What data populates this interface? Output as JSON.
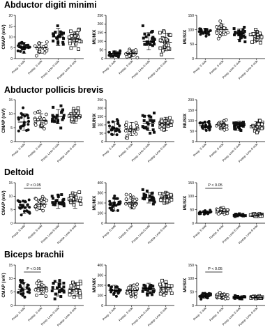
{
  "figure": {
    "panel_titles": [
      "Abductor digiti minimi",
      "Abductor pollicis brevis",
      "Deltoid",
      "Biceps brachii"
    ]
  },
  "colors": {
    "marker": "#111111",
    "axis": "#000000",
    "background": "#ffffff"
  },
  "chart_data": [
    {
      "type": "scatter",
      "panel": "Abductor digiti minimi",
      "ylabel": "CMAP (mV)",
      "ylim": [
        0,
        20
      ],
      "yticks": [
        0,
        5,
        10,
        15,
        20
      ],
      "categories": [
        "Presp. S side",
        "Postsp. S side",
        "Presp. Less-S side",
        "Postsp. Less-S side"
      ],
      "markers": [
        "circle",
        "circle-open",
        "square",
        "square-open"
      ],
      "means": [
        5,
        5,
        10,
        9
      ],
      "sd": [
        2.5,
        2.5,
        4,
        3.5
      ],
      "n": [
        24,
        22,
        22,
        22
      ],
      "annotation": null
    },
    {
      "type": "scatter",
      "panel": "Abductor digiti minimi",
      "ylabel": "MUNIX",
      "ylim": [
        0,
        250
      ],
      "yticks": [
        0,
        50,
        100,
        150,
        200,
        250
      ],
      "categories": [
        "Presp. S side",
        "Postsp. S side",
        "Presp. Less-S side",
        "Postsp. Less-S side"
      ],
      "markers": [
        "circle",
        "circle-open",
        "square",
        "square-open"
      ],
      "means": [
        30,
        30,
        100,
        95
      ],
      "sd": [
        15,
        20,
        50,
        50
      ],
      "n": [
        24,
        22,
        22,
        22
      ],
      "annotation": null
    },
    {
      "type": "scatter",
      "panel": "Abductor digiti minimi",
      "ylabel": "MUSIX",
      "ylim": [
        0,
        150
      ],
      "yticks": [
        0,
        50,
        100,
        150
      ],
      "categories": [
        "Presp. S side",
        "Postsp. S side",
        "Presp. Less-S side",
        "Postsp. Less-S side"
      ],
      "markers": [
        "circle",
        "circle-open",
        "square",
        "square-open"
      ],
      "means": [
        95,
        100,
        85,
        80
      ],
      "sd": [
        10,
        20,
        18,
        18
      ],
      "n": [
        20,
        20,
        22,
        22
      ],
      "annotation": null
    },
    {
      "type": "scatter",
      "panel": "Abductor pollicis brevis",
      "ylabel": "CMAP (mV)",
      "ylim": [
        0,
        15
      ],
      "yticks": [
        0,
        5,
        10,
        15
      ],
      "categories": [
        "Presp. S side",
        "Postsp. S side",
        "Presp. Less-S side",
        "Postsp. Less-S side"
      ],
      "markers": [
        "circle",
        "circle-open",
        "square",
        "square-open"
      ],
      "means": [
        7,
        7.5,
        9,
        9
      ],
      "sd": [
        3,
        2.5,
        2.5,
        2.5
      ],
      "n": [
        24,
        22,
        22,
        22
      ],
      "annotation": null
    },
    {
      "type": "scatter",
      "panel": "Abductor pollicis brevis",
      "ylabel": "MUNIX",
      "ylim": [
        0,
        250
      ],
      "yticks": [
        0,
        50,
        100,
        150,
        200,
        250
      ],
      "categories": [
        "Presp. S side",
        "Postsp. S side",
        "Presp. Less-S side",
        "Postsp. Less-S side"
      ],
      "markers": [
        "circle",
        "circle-open",
        "square",
        "square-open"
      ],
      "means": [
        80,
        75,
        110,
        105
      ],
      "sd": [
        40,
        40,
        45,
        40
      ],
      "n": [
        24,
        22,
        22,
        22
      ],
      "annotation": null
    },
    {
      "type": "scatter",
      "panel": "Abductor pollicis brevis",
      "ylabel": "MUSIX",
      "ylim": [
        0,
        200
      ],
      "yticks": [
        0,
        50,
        100,
        150,
        200
      ],
      "categories": [
        "Presp. S side",
        "Postsp. S side",
        "Presp. Less-S side",
        "Postsp. Less-S side"
      ],
      "markers": [
        "circle",
        "circle-open",
        "square",
        "square-open"
      ],
      "means": [
        75,
        80,
        75,
        75
      ],
      "sd": [
        18,
        18,
        22,
        20
      ],
      "n": [
        22,
        22,
        22,
        22
      ],
      "annotation": null
    },
    {
      "type": "scatter",
      "panel": "Deltoid",
      "ylabel": "CMAP (mV)",
      "ylim": [
        0,
        15
      ],
      "yticks": [
        0,
        5,
        10,
        15
      ],
      "categories": [
        "Presp. S side",
        "Postsp. S side",
        "Presp. Less-S side",
        "Postsp. Less-S side"
      ],
      "markers": [
        "circle",
        "circle-open",
        "square",
        "square-open"
      ],
      "means": [
        6,
        7,
        8,
        8
      ],
      "sd": [
        2.5,
        2,
        2.5,
        2.5
      ],
      "n": [
        24,
        22,
        22,
        22
      ],
      "annotation": "P < 0.05"
    },
    {
      "type": "scatter",
      "panel": "Deltoid",
      "ylabel": "MUNIX",
      "ylim": [
        0,
        400
      ],
      "yticks": [
        0,
        100,
        200,
        300,
        400
      ],
      "categories": [
        "Presp. S side",
        "Postsp. S side",
        "Presp. Less-S side",
        "Postsp. Less-S side"
      ],
      "markers": [
        "circle",
        "circle-open",
        "square",
        "square-open"
      ],
      "means": [
        180,
        200,
        250,
        250
      ],
      "sd": [
        60,
        60,
        50,
        50
      ],
      "n": [
        24,
        22,
        22,
        22
      ],
      "annotation": null
    },
    {
      "type": "scatter",
      "panel": "Deltoid",
      "ylabel": "MUSIX",
      "ylim": [
        0,
        150
      ],
      "yticks": [
        0,
        50,
        100,
        150
      ],
      "categories": [
        "Presp. S side",
        "Postsp. S side",
        "Presp. Less-S side",
        "Postsp. Less-S side"
      ],
      "markers": [
        "circle",
        "circle-open",
        "square",
        "square-open"
      ],
      "means": [
        40,
        45,
        30,
        30
      ],
      "sd": [
        6,
        10,
        4,
        4
      ],
      "n": [
        22,
        22,
        22,
        22
      ],
      "annotation": "P < 0.05"
    },
    {
      "type": "scatter",
      "panel": "Biceps brachii",
      "ylabel": "CMAP (mV)",
      "ylim": [
        0,
        15
      ],
      "yticks": [
        0,
        5,
        10,
        15
      ],
      "categories": [
        "Presp. S side",
        "Postsp. S side",
        "Presp. Less-S side",
        "Postsp. Less-S side"
      ],
      "markers": [
        "circle",
        "circle-open",
        "square",
        "square-open"
      ],
      "means": [
        6,
        6.5,
        6,
        6
      ],
      "sd": [
        2.5,
        2.5,
        2.5,
        2.5
      ],
      "n": [
        24,
        22,
        22,
        22
      ],
      "annotation": "P < 0.05"
    },
    {
      "type": "scatter",
      "panel": "Biceps brachii",
      "ylabel": "MUNIX",
      "ylim": [
        0,
        400
      ],
      "yticks": [
        0,
        100,
        200,
        300,
        400
      ],
      "categories": [
        "Presp. S side",
        "Postsp. S side",
        "Presp. Less-S side",
        "Postsp. Less-S side"
      ],
      "markers": [
        "circle",
        "circle-open",
        "square",
        "square-open"
      ],
      "means": [
        150,
        150,
        170,
        175
      ],
      "sd": [
        50,
        55,
        50,
        45
      ],
      "n": [
        24,
        22,
        22,
        22
      ],
      "annotation": null
    },
    {
      "type": "scatter",
      "panel": "Biceps brachii",
      "ylabel": "MUSIX",
      "ylim": [
        0,
        150
      ],
      "yticks": [
        0,
        50,
        100,
        150
      ],
      "categories": [
        "Presp. S side",
        "Postsp. S side",
        "Presp. Less-S side",
        "Postsp. Less-S side"
      ],
      "markers": [
        "circle",
        "circle-open",
        "square",
        "square-open"
      ],
      "means": [
        35,
        35,
        30,
        30
      ],
      "sd": [
        8,
        10,
        4,
        4
      ],
      "n": [
        22,
        22,
        22,
        22
      ],
      "annotation": "P < 0.05"
    }
  ]
}
